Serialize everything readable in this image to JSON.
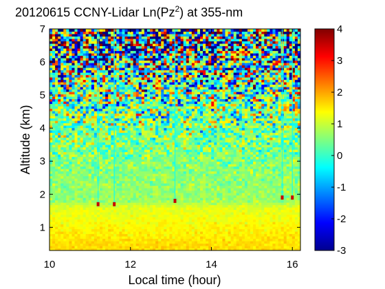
{
  "chart_data": {
    "type": "heatmap",
    "title_main": "20120615 CCNY-Lidar Ln(Pz",
    "title_sup": "2",
    "title_tail": ") at 355-nm",
    "xlabel": "Local time (hour)",
    "ylabel": "Altitude (km)",
    "xlim": [
      10,
      16.2
    ],
    "ylim": [
      0.3,
      7
    ],
    "xticks": [
      10,
      12,
      14,
      16
    ],
    "xtick_labels": [
      "10",
      "12",
      "14",
      "16"
    ],
    "yticks": [
      1,
      2,
      3,
      4,
      5,
      6,
      7
    ],
    "ytick_labels": [
      "1",
      "2",
      "3",
      "4",
      "5",
      "6",
      "7"
    ],
    "colorbar": {
      "clim": [
        -3,
        4
      ],
      "ticks": [
        -3,
        -2,
        -1,
        0,
        1,
        2,
        3,
        4
      ],
      "tick_labels": [
        "-3",
        "-2",
        "-1",
        "0",
        "1",
        "2",
        "3",
        "4"
      ],
      "colormap": "jet"
    },
    "boundary_layer_top_km": 1.75,
    "field_levels": [
      {
        "altitude_km": 0.5,
        "value": 1.6
      },
      {
        "altitude_km": 1.0,
        "value": 1.4
      },
      {
        "altitude_km": 1.6,
        "value": 1.2
      },
      {
        "altitude_km": 1.8,
        "value": 0.7
      },
      {
        "altitude_km": 2.5,
        "value": 0.6
      },
      {
        "altitude_km": 3.5,
        "value": 0.5
      },
      {
        "altitude_km": 4.5,
        "value": 0.4
      },
      {
        "altitude_km": 5.5,
        "value": 0.2
      },
      {
        "altitude_km": 6.5,
        "value": 0.0
      },
      {
        "altitude_km": 7.0,
        "value": -0.2
      }
    ],
    "cloud_events": [
      {
        "time_hour": 11.2,
        "altitude_km": 1.7
      },
      {
        "time_hour": 11.6,
        "altitude_km": 1.7
      },
      {
        "time_hour": 13.1,
        "altitude_km": 1.8
      },
      {
        "time_hour": 15.75,
        "altitude_km": 1.9
      },
      {
        "time_hour": 16.0,
        "altitude_km": 1.9
      }
    ]
  }
}
